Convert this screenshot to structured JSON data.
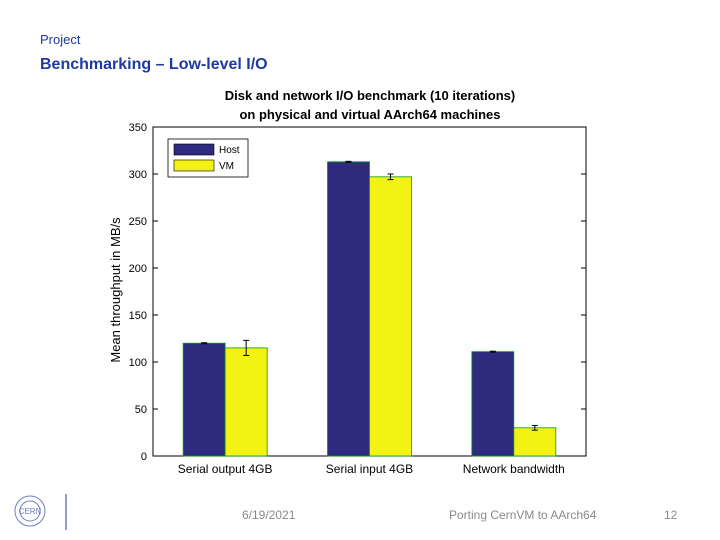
{
  "slide": {
    "header": "Project",
    "title": "Benchmarking – Low-level I/O"
  },
  "footer": {
    "logo_text": "CERN",
    "date": "6/19/2021",
    "presentation": "Porting CernVM to AArch64",
    "page": "12"
  },
  "colors": {
    "host": "#2e2a7e",
    "vm": "#f2f215",
    "accent": "#1f3a9e"
  },
  "chart_data": {
    "type": "bar",
    "title": [
      "Disk and network I/O benchmark (10 iterations)",
      "on physical and virtual AArch64 machines"
    ],
    "xlabel": "",
    "ylabel": "Mean throughput in MB/s",
    "ylim": [
      0,
      350
    ],
    "yticks": [
      0,
      50,
      100,
      150,
      200,
      250,
      300,
      350
    ],
    "categories": [
      "Serial output 4GB",
      "Serial input 4GB",
      "Network bandwidth"
    ],
    "series": [
      {
        "name": "Host",
        "values": [
          120,
          313,
          111
        ],
        "errors": [
          0.5,
          0.5,
          0.5
        ]
      },
      {
        "name": "VM",
        "values": [
          115,
          297,
          30
        ],
        "errors": [
          8,
          3,
          2.5
        ]
      }
    ],
    "legend": "top-left",
    "grid": false
  }
}
